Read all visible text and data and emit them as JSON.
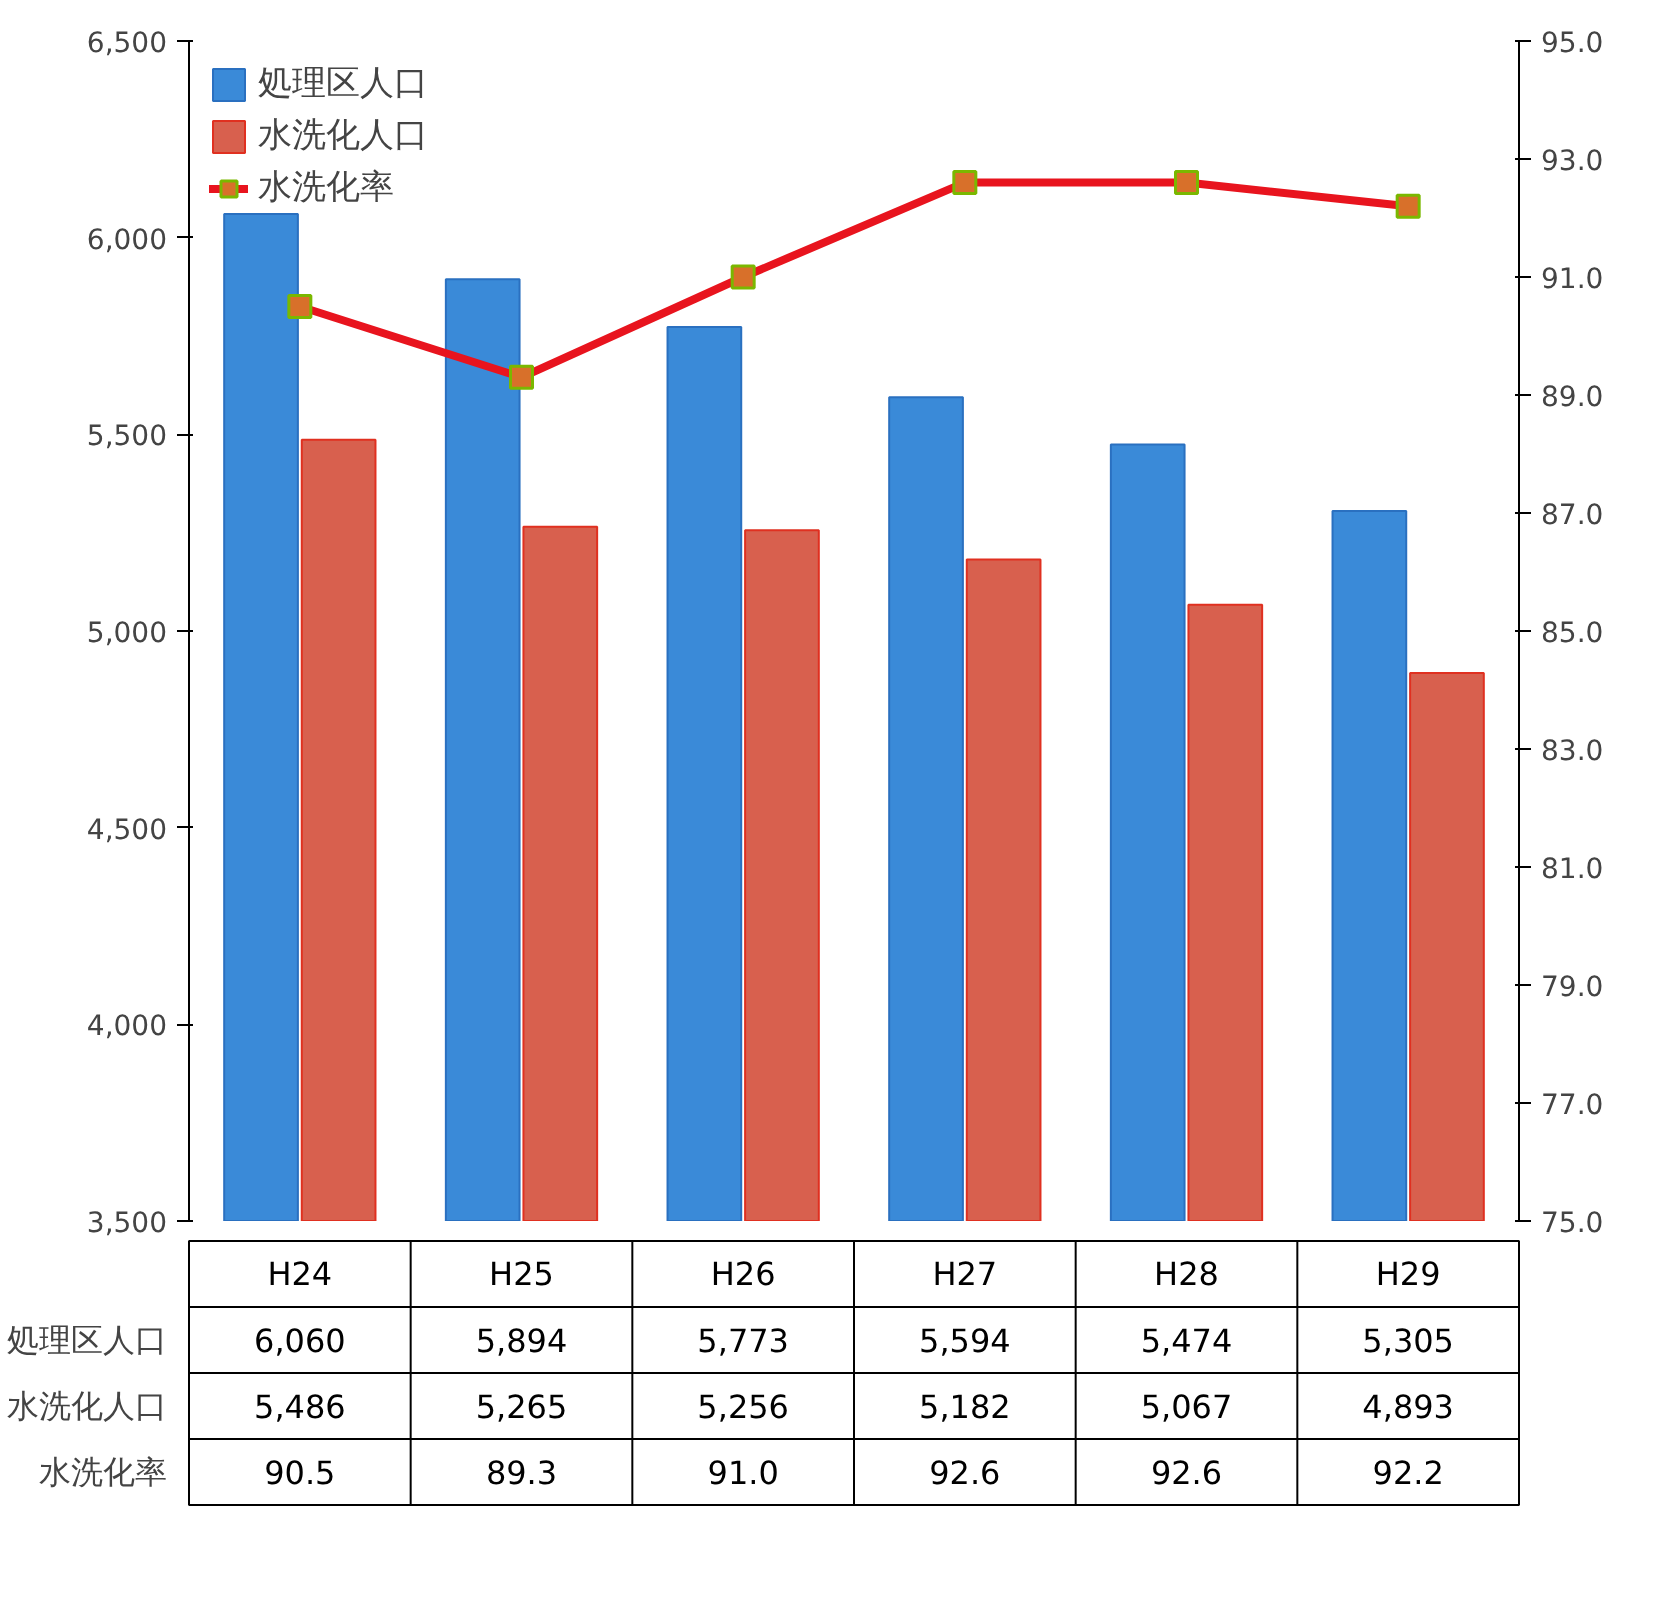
{
  "chart_data": {
    "type": "bar",
    "categories": [
      "H24",
      "H25",
      "H26",
      "H27",
      "H28",
      "H29"
    ],
    "series": [
      {
        "name": "処理区人口",
        "color": "#3a8ad8",
        "values": [
          6060,
          5894,
          5773,
          5594,
          5474,
          5305
        ],
        "value_labels": [
          "6,060",
          "5,894",
          "5,773",
          "5,594",
          "5,474",
          "5,305"
        ]
      },
      {
        "name": "水洗化人口",
        "color": "#d8604e",
        "values": [
          5486,
          5265,
          5256,
          5182,
          5067,
          4893
        ],
        "value_labels": [
          "5,486",
          "5,265",
          "5,256",
          "5,182",
          "5,067",
          "4,893"
        ]
      },
      {
        "name": "水洗化率",
        "type": "line",
        "axis": "y2",
        "color": "#e8141e",
        "values": [
          90.5,
          89.3,
          91.0,
          92.6,
          92.6,
          92.2
        ],
        "value_labels": [
          "90.5",
          "89.3",
          "91.0",
          "92.6",
          "92.6",
          "92.2"
        ]
      }
    ],
    "ylim": [
      3500,
      6500
    ],
    "yticks": [
      {
        "value": 3500,
        "label": "3,500"
      },
      {
        "value": 4000,
        "label": "4,000"
      },
      {
        "value": 4500,
        "label": "4,500"
      },
      {
        "value": 5000,
        "label": "5,000"
      },
      {
        "value": 5500,
        "label": "5,500"
      },
      {
        "value": 6000,
        "label": "6,000"
      },
      {
        "value": 6500,
        "label": "6,500"
      }
    ],
    "y2lim": [
      75,
      95
    ],
    "y2ticks": [
      {
        "value": 75,
        "label": "75.0"
      },
      {
        "value": 77,
        "label": "77.0"
      },
      {
        "value": 79,
        "label": "79.0"
      },
      {
        "value": 81,
        "label": "81.0"
      },
      {
        "value": 83,
        "label": "83.0"
      },
      {
        "value": 85,
        "label": "85.0"
      },
      {
        "value": 87,
        "label": "87.0"
      },
      {
        "value": 89,
        "label": "89.0"
      },
      {
        "value": 91,
        "label": "91.0"
      },
      {
        "value": 93,
        "label": "93.0"
      },
      {
        "value": 95,
        "label": "95.0"
      }
    ],
    "legend": "top left",
    "marker": "square",
    "line_style": "solid",
    "grid": false
  }
}
